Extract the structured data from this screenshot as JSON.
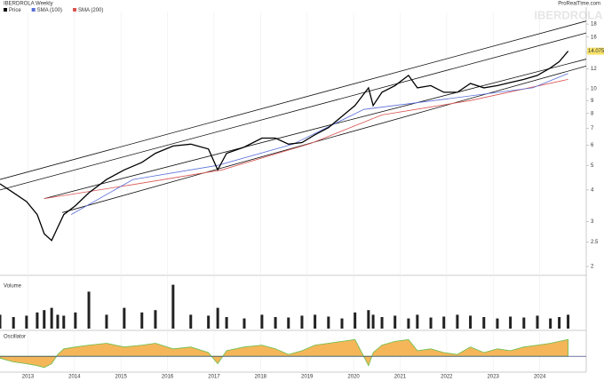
{
  "header": {
    "title": "IBERDROLA Weekly",
    "brand": "ProRealTime.com",
    "watermark": "IBERDROLA"
  },
  "chart_data": [
    {
      "type": "line",
      "log": true,
      "xlim": [
        2012.4,
        2025.0
      ],
      "xticks": [
        2013,
        2014,
        2015,
        2016,
        2017,
        2018,
        2019,
        2020,
        2021,
        2022,
        2023,
        2024
      ],
      "ylim": [
        2,
        20
      ],
      "yticks": [
        2,
        2.5,
        3,
        4,
        5,
        6,
        7,
        8,
        9,
        10,
        12,
        14,
        16,
        18
      ],
      "last_price": 14.075,
      "series": [
        {
          "name": "Price",
          "color": "#000000",
          "x": [
            2012.4,
            2012.69,
            2012.97,
            2013.2,
            2013.35,
            2013.51,
            2013.64,
            2013.77,
            2014.02,
            2014.31,
            2014.69,
            2015.07,
            2015.45,
            2015.74,
            2016.12,
            2016.5,
            2016.88,
            2017.08,
            2017.27,
            2017.65,
            2018.03,
            2018.32,
            2018.6,
            2018.89,
            2019.17,
            2019.46,
            2019.75,
            2020.03,
            2020.32,
            2020.42,
            2020.61,
            2020.89,
            2021.18,
            2021.37,
            2021.66,
            2021.94,
            2022.23,
            2022.51,
            2022.8,
            2023.09,
            2023.37,
            2023.66,
            2023.95,
            2024.23,
            2024.42,
            2024.61
          ],
          "values": [
            4.23,
            3.9,
            3.6,
            3.2,
            2.69,
            2.53,
            2.85,
            3.2,
            3.47,
            3.9,
            4.4,
            4.8,
            5.14,
            5.58,
            5.96,
            6.06,
            5.8,
            4.8,
            5.58,
            5.9,
            6.4,
            6.4,
            6.06,
            6.15,
            6.6,
            7.04,
            7.8,
            8.6,
            10.1,
            8.6,
            9.7,
            10.3,
            11.3,
            10.1,
            10.3,
            9.7,
            9.7,
            10.5,
            10.1,
            10.3,
            10.6,
            10.9,
            11.3,
            12.1,
            12.8,
            14.075
          ]
        },
        {
          "name": "SMA (100)",
          "color": "#5a6fd8",
          "x": [
            2013.93,
            2015.26,
            2017.08,
            2018.7,
            2020.22,
            2021.94,
            2023.85,
            2024.61
          ],
          "values": [
            3.2,
            4.4,
            5.0,
            6.06,
            8.3,
            9.1,
            10.1,
            11.5
          ]
        },
        {
          "name": "SMA (200)",
          "color": "#d9534f",
          "x": [
            2013.35,
            2015.26,
            2017.17,
            2019.08,
            2020.61,
            2022.51,
            2024.61
          ],
          "values": [
            3.7,
            4.2,
            4.8,
            6.1,
            7.9,
            9.0,
            10.9
          ]
        }
      ],
      "trendlines": [
        {
          "x": [
            2012.4,
            2025.0
          ],
          "values": [
            4.4,
            18.5
          ]
        },
        {
          "x": [
            2012.4,
            2025.0
          ],
          "values": [
            4.0,
            16.6
          ]
        },
        {
          "x": [
            2013.35,
            2025.0
          ],
          "values": [
            3.7,
            13.1
          ]
        },
        {
          "x": [
            2013.74,
            2025.0
          ],
          "values": [
            3.26,
            12.3
          ]
        }
      ]
    },
    {
      "type": "bar",
      "name": "Volume",
      "color": "#222222",
      "ylim": [
        0,
        100
      ],
      "x": [
        2012.4,
        2012.69,
        2012.97,
        2013.2,
        2013.35,
        2013.51,
        2013.64,
        2013.77,
        2014.02,
        2014.31,
        2014.69,
        2015.07,
        2015.45,
        2015.74,
        2016.12,
        2016.5,
        2016.88,
        2017.08,
        2017.27,
        2017.65,
        2018.03,
        2018.32,
        2018.6,
        2018.89,
        2019.17,
        2019.46,
        2019.75,
        2020.03,
        2020.32,
        2020.42,
        2020.61,
        2020.89,
        2021.18,
        2021.37,
        2021.66,
        2021.94,
        2022.23,
        2022.51,
        2022.8,
        2023.09,
        2023.37,
        2023.66,
        2023.95,
        2024.23,
        2024.42,
        2024.61
      ],
      "values": [
        30,
        25,
        28,
        35,
        40,
        45,
        30,
        28,
        35,
        80,
        30,
        45,
        35,
        40,
        95,
        30,
        28,
        45,
        25,
        22,
        30,
        25,
        24,
        28,
        30,
        26,
        22,
        35,
        40,
        30,
        25,
        28,
        22,
        30,
        24,
        26,
        30,
        28,
        25,
        22,
        26,
        24,
        28,
        22,
        25,
        30
      ]
    },
    {
      "type": "area",
      "name": "Oscillator",
      "color": "#f5b65a",
      "ylim": [
        -40,
        60
      ],
      "x": [
        2012.4,
        2012.69,
        2012.97,
        2013.2,
        2013.35,
        2013.51,
        2013.64,
        2013.77,
        2014.02,
        2014.31,
        2014.69,
        2015.07,
        2015.45,
        2015.74,
        2016.12,
        2016.5,
        2016.88,
        2017.08,
        2017.27,
        2017.65,
        2018.03,
        2018.32,
        2018.6,
        2018.89,
        2019.17,
        2019.46,
        2019.75,
        2020.03,
        2020.32,
        2020.42,
        2020.61,
        2020.89,
        2021.18,
        2021.37,
        2021.66,
        2021.94,
        2022.23,
        2022.51,
        2022.8,
        2023.09,
        2023.37,
        2023.66,
        2023.95,
        2024.23,
        2024.42,
        2024.61
      ],
      "values": [
        -5,
        -15,
        -20,
        -25,
        -30,
        -20,
        5,
        20,
        25,
        30,
        35,
        25,
        30,
        35,
        20,
        25,
        10,
        -20,
        15,
        25,
        30,
        20,
        5,
        15,
        30,
        35,
        40,
        45,
        -25,
        10,
        30,
        40,
        45,
        15,
        20,
        10,
        5,
        25,
        10,
        20,
        15,
        25,
        30,
        35,
        40,
        45
      ]
    }
  ]
}
